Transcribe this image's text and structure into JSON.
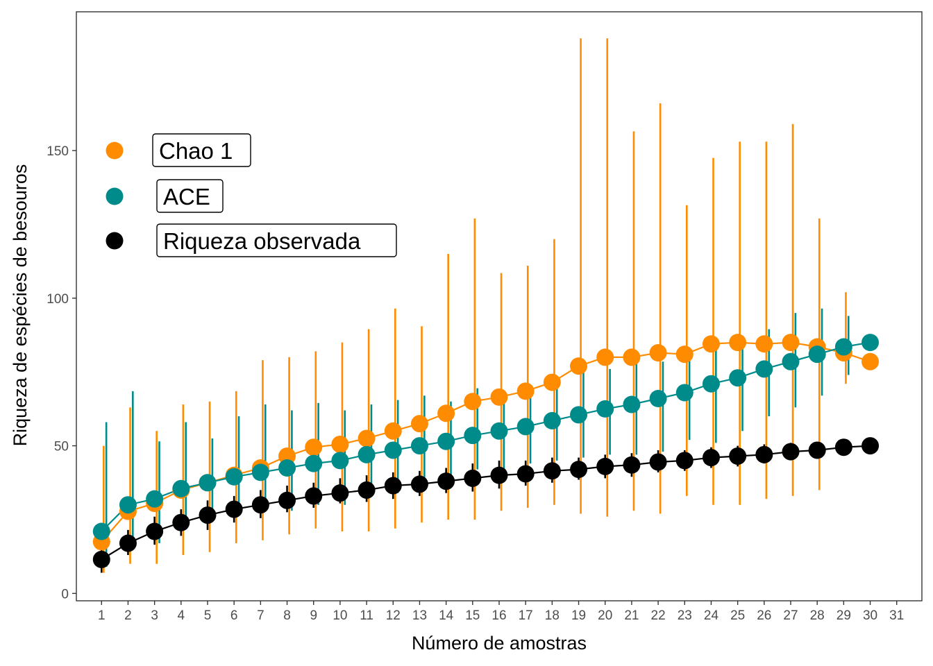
{
  "chart_data": {
    "type": "line",
    "xlabel": "Número de amostras",
    "ylabel": "Riqueza de espécies de besouros",
    "x_ticks": [
      1,
      2,
      3,
      4,
      5,
      6,
      7,
      8,
      9,
      10,
      11,
      12,
      13,
      14,
      15,
      16,
      17,
      18,
      19,
      20,
      21,
      22,
      23,
      24,
      25,
      26,
      27,
      28,
      29,
      30,
      31
    ],
    "y_ticks": [
      0,
      50,
      100,
      150
    ],
    "xlim": [
      0.05,
      31.95
    ],
    "ylim": [
      -2.5,
      197
    ],
    "grid": false,
    "legend_position": "top-left",
    "x": [
      1,
      2,
      3,
      4,
      5,
      6,
      7,
      8,
      9,
      10,
      11,
      12,
      13,
      14,
      15,
      16,
      17,
      18,
      19,
      20,
      21,
      22,
      23,
      24,
      25,
      26,
      27,
      28,
      29,
      30
    ],
    "series": [
      {
        "name": "Chao 1",
        "color": "#FF8C00",
        "errbar_offset": 0.08,
        "values": [
          17.5,
          27.8,
          30.5,
          35,
          37.5,
          40,
          42.5,
          46.5,
          49.5,
          50.5,
          52.5,
          55,
          57.5,
          61,
          65,
          66.5,
          68.5,
          71.5,
          77,
          80,
          80,
          81.5,
          81,
          84.5,
          85,
          84.5,
          85,
          83.5,
          81.5,
          78.5
        ],
        "lower": [
          7,
          10,
          10,
          13,
          14,
          17,
          18,
          20,
          22,
          21,
          21,
          22,
          24,
          25,
          25,
          28,
          29,
          30,
          27,
          26,
          28,
          27,
          33,
          30,
          30,
          32,
          33,
          35,
          71,
          78.5
        ],
        "upper": [
          50,
          63,
          55,
          64,
          65,
          68.5,
          79,
          80,
          82,
          85,
          89.5,
          96.5,
          90.5,
          115,
          127,
          108.5,
          111,
          120,
          188,
          188,
          156.5,
          166,
          131.5,
          147.5,
          153,
          153,
          159,
          127,
          102,
          78.5
        ]
      },
      {
        "name": "ACE",
        "color": "#008B8B",
        "errbar_offset": 0.18,
        "values": [
          21,
          30,
          32,
          35.5,
          37.5,
          39.5,
          41,
          42.5,
          44,
          45,
          47,
          48.5,
          50,
          51.5,
          53.5,
          55,
          56.5,
          58.5,
          60.5,
          62.5,
          64,
          66,
          68,
          71,
          73,
          76,
          78.5,
          81,
          83.5,
          85
        ],
        "lower": [
          9,
          15,
          17,
          22,
          25,
          27,
          28,
          28,
          30,
          30,
          33,
          34,
          36,
          37,
          42,
          42,
          44,
          45,
          46,
          47,
          47,
          48,
          52,
          51,
          55,
          60,
          63,
          67,
          74,
          85
        ],
        "upper": [
          58,
          68.5,
          51.5,
          58,
          52.5,
          60,
          64,
          62,
          64.5,
          62,
          64,
          65.5,
          67,
          65,
          69.5,
          67.5,
          69,
          70,
          77.5,
          76,
          79,
          78.5,
          79.5,
          86,
          87,
          89.5,
          95,
          96.5,
          94,
          85
        ]
      },
      {
        "name": "Riqueza observada",
        "color": "#000000",
        "errbar_offset": 0,
        "values": [
          11.5,
          17,
          21,
          24,
          26.5,
          28.5,
          30,
          31.5,
          33,
          34,
          35,
          36.5,
          37,
          38,
          39,
          40,
          40.5,
          41.5,
          42,
          43,
          43.5,
          44.5,
          45,
          46,
          46.5,
          47,
          48,
          48.5,
          49.5,
          50
        ],
        "lower": [
          7,
          13,
          16.5,
          19.5,
          21.5,
          24,
          25.5,
          27.5,
          29,
          30.5,
          31,
          32,
          33,
          34,
          34.5,
          35.5,
          36.5,
          37.5,
          38.5,
          39,
          39.5,
          41,
          41.5,
          42.5,
          43,
          44,
          45.5,
          46.5,
          48,
          50
        ],
        "upper": [
          16,
          21.5,
          26,
          28.5,
          31.5,
          33,
          35,
          36.5,
          37.5,
          39,
          40,
          41,
          41.5,
          42.5,
          44,
          45,
          45,
          46,
          46,
          47,
          47.5,
          48.5,
          48.5,
          49.5,
          50,
          50.5,
          51,
          51,
          51,
          50
        ]
      }
    ]
  }
}
